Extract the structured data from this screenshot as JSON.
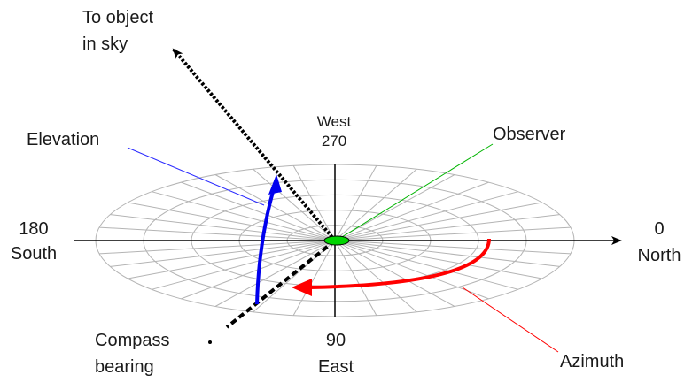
{
  "labels": {
    "to_object_line1": "To object",
    "to_object_line2": "in sky",
    "elevation": "Elevation",
    "west": "West",
    "deg_270": "270",
    "observer": "Observer",
    "deg_180": "180",
    "south": "South",
    "deg_0": "0",
    "north": "North",
    "compass_line1": "Compass",
    "compass_line2": "bearing",
    "deg_90": "90",
    "east": "East",
    "azimuth": "Azimuth"
  },
  "colors": {
    "grid": "#b4b4b4",
    "axis": "#000000",
    "observer": "#00d400",
    "elevation_arc": "#0000ee",
    "elevation_leader": "#2a2aff",
    "azimuth_arc": "#ff0000",
    "observer_leader": "#00b400",
    "sight_line": "#000000"
  }
}
